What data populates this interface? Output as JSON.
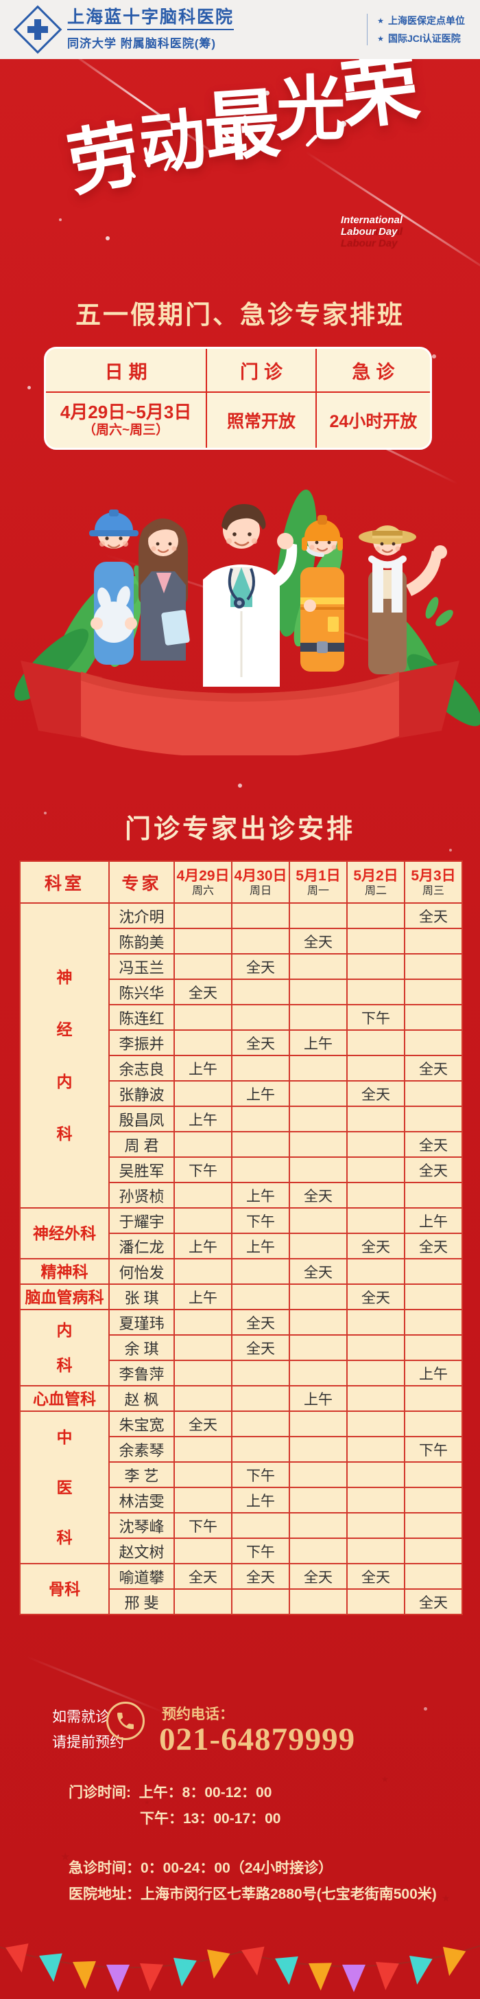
{
  "colors": {
    "brand_blue": "#2a5caa",
    "poster_red": "#c9191c",
    "table_border_red": "#d2372c",
    "cream": "#fcf3da",
    "gold": "#f2c585",
    "text_gold": "#fbe5bd"
  },
  "header": {
    "hospital_name": "上海蓝十字脑科医院",
    "affiliation": "同济大学 附属脑科医院(筹)",
    "credentials": [
      "上海医保定点单位",
      "国际JCI认证医院"
    ]
  },
  "hero": {
    "calligraphy_title": "劳动最光荣",
    "calligraphy_en_line1": "International",
    "calligraphy_en_line2": "Labour Day",
    "subtitle": "五一假期门、急诊专家排班"
  },
  "holiday_table": {
    "headers": [
      "日期",
      "门诊",
      "急诊"
    ],
    "date_range": "4月29日~5月3日",
    "date_note": "（周六~周三）",
    "outpatient_status": "照常开放",
    "emergency_status": "24小时开放"
  },
  "schedule": {
    "title": "门诊专家出诊安排",
    "columns": {
      "dept": "科室",
      "expert": "专家",
      "dates": [
        {
          "date": "4月29日",
          "weekday": "周六"
        },
        {
          "date": "4月30日",
          "weekday": "周日"
        },
        {
          "date": "5月1日",
          "weekday": "周一"
        },
        {
          "date": "5月2日",
          "weekday": "周二"
        },
        {
          "date": "5月3日",
          "weekday": "周三"
        }
      ]
    },
    "departments": [
      {
        "name": "神经内科",
        "orientation": "vertical",
        "experts": [
          {
            "name": "沈介明",
            "slots": [
              "",
              "",
              "",
              "",
              "全天"
            ]
          },
          {
            "name": "陈韵美",
            "slots": [
              "",
              "",
              "全天",
              "",
              ""
            ]
          },
          {
            "name": "冯玉兰",
            "slots": [
              "",
              "全天",
              "",
              "",
              ""
            ]
          },
          {
            "name": "陈兴华",
            "slots": [
              "全天",
              "",
              "",
              "",
              ""
            ]
          },
          {
            "name": "陈连红",
            "slots": [
              "",
              "",
              "",
              "下午",
              ""
            ]
          },
          {
            "name": "李振并",
            "slots": [
              "",
              "全天",
              "上午",
              "",
              ""
            ]
          },
          {
            "name": "余志良",
            "slots": [
              "上午",
              "",
              "",
              "",
              "全天"
            ]
          },
          {
            "name": "张静波",
            "slots": [
              "",
              "上午",
              "",
              "全天",
              ""
            ]
          },
          {
            "name": "殷昌凤",
            "slots": [
              "上午",
              "",
              "",
              "",
              ""
            ]
          },
          {
            "name": "周 君",
            "slots": [
              "",
              "",
              "",
              "",
              "全天"
            ]
          },
          {
            "name": "吴胜军",
            "slots": [
              "下午",
              "",
              "",
              "",
              "全天"
            ]
          },
          {
            "name": "孙贤桢",
            "slots": [
              "",
              "上午",
              "全天",
              "",
              ""
            ]
          }
        ]
      },
      {
        "name": "神经外科",
        "orientation": "horizontal",
        "experts": [
          {
            "name": "于耀宇",
            "slots": [
              "",
              "下午",
              "",
              "",
              "上午"
            ]
          },
          {
            "name": "潘仁龙",
            "slots": [
              "上午",
              "上午",
              "",
              "全天",
              "全天"
            ]
          }
        ]
      },
      {
        "name": "精神科",
        "orientation": "horizontal",
        "experts": [
          {
            "name": "何怡发",
            "slots": [
              "",
              "",
              "全天",
              "",
              ""
            ]
          }
        ]
      },
      {
        "name": "脑血管病科",
        "orientation": "horizontal",
        "experts": [
          {
            "name": "张 琪",
            "slots": [
              "上午",
              "",
              "",
              "全天",
              ""
            ]
          }
        ]
      },
      {
        "name": "内科",
        "orientation": "vertical",
        "experts": [
          {
            "name": "夏瑾玮",
            "slots": [
              "",
              "全天",
              "",
              "",
              ""
            ]
          },
          {
            "name": "余 琪",
            "slots": [
              "",
              "全天",
              "",
              "",
              ""
            ]
          },
          {
            "name": "李鲁萍",
            "slots": [
              "",
              "",
              "",
              "",
              "上午"
            ]
          }
        ]
      },
      {
        "name": "心血管科",
        "orientation": "horizontal",
        "experts": [
          {
            "name": "赵 枫",
            "slots": [
              "",
              "",
              "上午",
              "",
              ""
            ]
          }
        ]
      },
      {
        "name": "中医科",
        "orientation": "vertical",
        "experts": [
          {
            "name": "朱宝宽",
            "slots": [
              "全天",
              "",
              "",
              "",
              ""
            ]
          },
          {
            "name": "余素琴",
            "slots": [
              "",
              "",
              "",
              "",
              "下午"
            ]
          },
          {
            "name": "李 艺",
            "slots": [
              "",
              "下午",
              "",
              "",
              ""
            ]
          },
          {
            "name": "林洁雯",
            "slots": [
              "",
              "上午",
              "",
              "",
              ""
            ]
          },
          {
            "name": "沈琴峰",
            "slots": [
              "下午",
              "",
              "",
              "",
              ""
            ]
          },
          {
            "name": "赵文树",
            "slots": [
              "",
              "下午",
              "",
              "",
              ""
            ]
          }
        ]
      },
      {
        "name": "骨科",
        "orientation": "horizontal",
        "experts": [
          {
            "name": "喻道攀",
            "slots": [
              "全天",
              "全天",
              "全天",
              "全天",
              ""
            ]
          },
          {
            "name": "邢 斐",
            "slots": [
              "",
              "",
              "",
              "",
              "全天"
            ]
          }
        ]
      }
    ]
  },
  "booking": {
    "need_line1": "如需就诊",
    "need_line2": "请提前预约",
    "phone_icon": "phone-icon",
    "label": "预约电话：",
    "number": "021-64879999"
  },
  "info": {
    "clinic_hours_label": "门诊时间:",
    "clinic_hours_morning": "上午：8：00-12：00",
    "clinic_hours_afternoon": "下午：13：00-17：00",
    "emergency_line": "急诊时间：0：00-24：00（24小时接诊）",
    "address_line": "医院地址：上海市闵行区七莘路2880号(七宝老街南500米)"
  }
}
